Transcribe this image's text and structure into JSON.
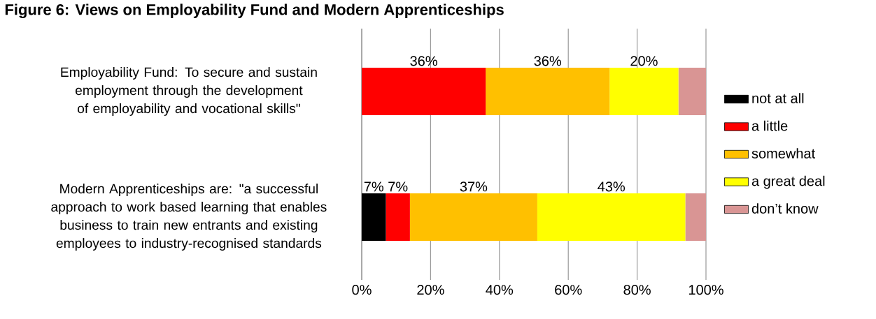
{
  "chart_data": {
    "type": "bar",
    "orientation": "horizontal",
    "stacked": true,
    "title": "Figure 6: Views on Employability Fund and Modern Apprenticeships",
    "categories": [
      "Employability Fund: To secure and sustain employment through the development of employability and vocational skills\"",
      "Modern Apprenticeships are: \"a successful approach to work based learning that enables business to train new entrants and existing employees to industry-recognised standards"
    ],
    "series": [
      {
        "name": "not at all",
        "color": "#000000",
        "values": [
          0,
          7
        ],
        "value_labels": [
          null,
          "7%"
        ]
      },
      {
        "name": "a little",
        "color": "#ff0000",
        "values": [
          36,
          7
        ],
        "value_labels": [
          "36%",
          "7%"
        ]
      },
      {
        "name": "somewhat",
        "color": "#ffc000",
        "values": [
          36,
          37
        ],
        "value_labels": [
          "36%",
          "37%"
        ]
      },
      {
        "name": "a great deal",
        "color": "#ffff00",
        "values": [
          20,
          43
        ],
        "value_labels": [
          "20%",
          "43%"
        ]
      },
      {
        "name": "don’t know",
        "color": "#d99594",
        "values": [
          8,
          6
        ],
        "value_labels": [
          null,
          null
        ]
      }
    ],
    "xlim": [
      0,
      100
    ],
    "xticks": [
      {
        "value": 0,
        "label": "0%"
      },
      {
        "value": 20,
        "label": "20%"
      },
      {
        "value": 40,
        "label": "40%"
      },
      {
        "value": 60,
        "label": "60%"
      },
      {
        "value": 80,
        "label": "80%"
      },
      {
        "value": 100,
        "label": "100%"
      }
    ],
    "grid": "x",
    "legend": "right"
  }
}
